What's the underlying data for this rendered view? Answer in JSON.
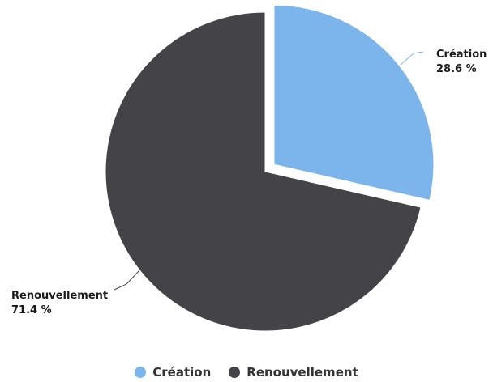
{
  "chart_data": {
    "type": "pie",
    "title": "",
    "slices": [
      {
        "label": "Création",
        "value": 28.6,
        "value_label": "28.6 %",
        "color": "#7cb5ec",
        "exploded": true
      },
      {
        "label": "Renouvellement",
        "value": 71.4,
        "value_label": "71.4 %",
        "color": "#434348",
        "exploded": false
      }
    ],
    "legend_position": "bottom-center"
  },
  "legend": {
    "items": [
      {
        "label": "Création",
        "color": "#7cb5ec"
      },
      {
        "label": "Renouvellement",
        "color": "#434348"
      }
    ]
  }
}
